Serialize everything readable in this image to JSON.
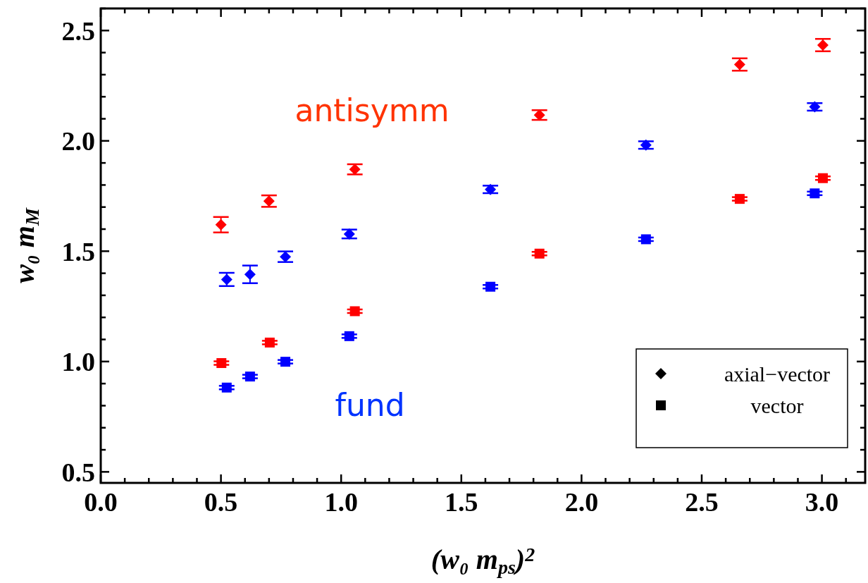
{
  "chart_data": {
    "type": "scatter",
    "xlabel": "(w₀ m$_{ps}$)$^{2}$",
    "ylabel": "w₀ m$_{M}$",
    "xlim": [
      0,
      3.18
    ],
    "ylim": [
      0.45,
      2.6
    ],
    "xticks": [
      {
        "value": 0,
        "label": "0.0"
      },
      {
        "value": 0.1,
        "label": null
      },
      {
        "value": 0.2,
        "label": null
      },
      {
        "value": 0.3,
        "label": null
      },
      {
        "value": 0.4,
        "label": null
      },
      {
        "value": 0.5,
        "label": "0.5"
      },
      {
        "value": 0.6,
        "label": null
      },
      {
        "value": 0.7,
        "label": null
      },
      {
        "value": 0.8,
        "label": null
      },
      {
        "value": 0.9,
        "label": null
      },
      {
        "value": 1,
        "label": "1.0"
      },
      {
        "value": 1.1,
        "label": null
      },
      {
        "value": 1.2,
        "label": null
      },
      {
        "value": 1.3,
        "label": null
      },
      {
        "value": 1.4,
        "label": null
      },
      1.5,
      {
        "value": 1.6,
        "label": null
      },
      {
        "value": 1.7,
        "label": null
      },
      {
        "value": 1.8,
        "label": null
      },
      {
        "value": 1.9,
        "label": null
      },
      {
        "value": 2,
        "label": "2.0"
      },
      {
        "value": 2.1,
        "label": null
      },
      {
        "value": 2.2,
        "label": null
      },
      {
        "value": 2.3,
        "label": null
      },
      {
        "value": 2.4,
        "label": null
      },
      2.5,
      {
        "value": 2.6,
        "label": null
      },
      {
        "value": 2.7,
        "label": null
      },
      {
        "value": 2.8,
        "label": null
      },
      {
        "value": 2.9,
        "label": null
      },
      {
        "value": 3,
        "label": "3.0"
      },
      {
        "value": 3.1,
        "label": null
      }
    ],
    "yticks": [
      0.5,
      {
        "value": 0.6,
        "label": null
      },
      {
        "value": 0.7,
        "label": null
      },
      {
        "value": 0.8,
        "label": null
      },
      {
        "value": 0.9,
        "label": null
      },
      {
        "value": 1,
        "label": "1.0"
      },
      {
        "value": 1.1,
        "label": null
      },
      {
        "value": 1.2,
        "label": null
      },
      {
        "value": 1.3,
        "label": null
      },
      {
        "value": 1.4,
        "label": null
      },
      1.5,
      {
        "value": 1.6,
        "label": null
      },
      {
        "value": 1.7,
        "label": null
      },
      {
        "value": 1.8,
        "label": null
      },
      {
        "value": 1.9,
        "label": null
      },
      {
        "value": 2,
        "label": "2.0"
      },
      {
        "value": 2.1,
        "label": null
      },
      {
        "value": 2.2,
        "label": null
      },
      {
        "value": 2.3,
        "label": null
      },
      {
        "value": 2.4,
        "label": null
      },
      2.5,
      {
        "value": 2.6,
        "label": null
      }
    ],
    "grid": false,
    "series": [
      {
        "marker": "diamond",
        "color": "#ff0000",
        "x": [
          0.5,
          0.7,
          1.057,
          1.825,
          2.658,
          3.004
        ],
        "values": [
          1.62,
          1.727,
          1.871,
          2.117,
          2.346,
          2.434
        ],
        "errors": [
          0.035,
          0.026,
          0.023,
          0.022,
          0.028,
          0.028
        ]
      },
      {
        "marker": "diamond",
        "color": "#0000ff",
        "x": [
          0.524,
          0.621,
          0.768,
          1.034,
          1.621,
          2.268,
          2.97
        ],
        "values": [
          1.372,
          1.395,
          1.475,
          1.578,
          1.78,
          1.981,
          2.154
        ],
        "errors": [
          0.03,
          0.04,
          0.024,
          0.02,
          0.017,
          0.017,
          0.017
        ]
      },
      {
        "marker": "square",
        "color": "#ff0000",
        "x": [
          0.502,
          0.703,
          1.057,
          1.825,
          2.658,
          3.004
        ],
        "values": [
          0.993,
          1.086,
          1.228,
          1.489,
          1.737,
          1.831
        ],
        "errors": [
          0.008,
          0.008,
          0.008,
          0.008,
          0.008,
          0.008
        ]
      },
      {
        "marker": "square",
        "color": "#0000ff",
        "x": [
          0.524,
          0.621,
          0.768,
          1.034,
          1.621,
          2.268,
          2.97
        ],
        "values": [
          0.882,
          0.932,
          0.999,
          1.115,
          1.339,
          1.554,
          1.762
        ],
        "errors": [
          0.008,
          0.008,
          0.008,
          0.008,
          0.008,
          0.008,
          0.008
        ]
      }
    ],
    "annotations": [
      "antisymm",
      "fund",
      "axial−vector",
      "vector"
    ]
  }
}
